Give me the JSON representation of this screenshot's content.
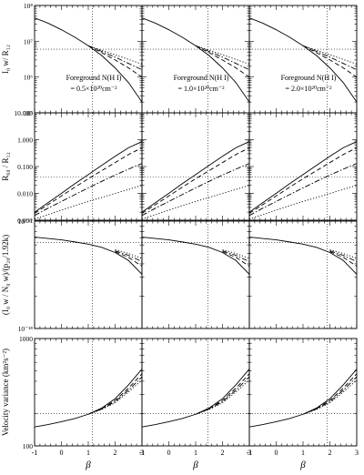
{
  "chart_data": {
    "type": "line",
    "x": {
      "label": "β",
      "lim": [
        -1,
        3
      ],
      "ticks": [
        "-1",
        "0",
        "1",
        "2",
        "3"
      ],
      "ref_lines": [
        1.15,
        1.45,
        1.9
      ]
    },
    "columns": [
      {
        "label_line1": "Foreground N(H I)",
        "label_line2": "=  0.5×10²⁰cm⁻²"
      },
      {
        "label_line1": "Foreground N(H I)",
        "label_line2": "=  1.0×10²⁰cm⁻²"
      },
      {
        "label_line1": "Foreground N(H I)",
        "label_line2": "=  2.0×10²⁰cm⁻²"
      }
    ],
    "rows": [
      {
        "ylabel": "I₀ w/ R₁₂",
        "scale": "log",
        "ylim": [
          100000,
          100000000
        ],
        "ticks": [
          {
            "v": 100000,
            "t": "10⁵"
          },
          {
            "v": 1000000,
            "t": "10⁶"
          },
          {
            "v": 10000000,
            "t": "10⁷"
          },
          {
            "v": 100000000,
            "t": "10⁸"
          }
        ],
        "ref_y": 6000000,
        "series": [
          {
            "style": "solid",
            "x": [
              -1,
              -0.5,
              0,
              0.5,
              1,
              1.5,
              2,
              2.5,
              3
            ],
            "y": [
              45000000,
              32000000,
              21000000,
              13000000,
              7500000,
              4000000,
              1800000,
              700000,
              200000
            ]
          },
          {
            "style": "dashed",
            "x": [
              1,
              1.5,
              2,
              2.5,
              3
            ],
            "y": [
              7500000,
              4800000,
              3000000,
              1800000,
              1000000
            ]
          },
          {
            "style": "dashdot",
            "x": [
              1,
              1.5,
              2,
              2.5,
              3
            ],
            "y": [
              7500000,
              5200000,
              3600000,
              2400000,
              1600000
            ]
          },
          {
            "style": "dotted",
            "x": [
              1,
              1.5,
              2,
              2.5,
              3
            ],
            "y": [
              7500000,
              5600000,
              4200000,
              3100000,
              2300000
            ]
          }
        ]
      },
      {
        "ylabel": "R₆₀ / R₁₂",
        "scale": "log",
        "ylim": [
          0.001,
          10
        ],
        "ticks": [
          {
            "v": 0.001,
            "t": "0.001"
          },
          {
            "v": 0.01,
            "t": "0.010"
          },
          {
            "v": 0.1,
            "t": "0.100"
          },
          {
            "v": 1,
            "t": "1.000"
          },
          {
            "v": 10,
            "t": "10.000"
          }
        ],
        "ref_y": 0.04,
        "series": [
          {
            "style": "solid",
            "x": [
              -1,
              -0.5,
              0,
              0.5,
              1,
              1.5,
              2,
              2.5,
              3
            ],
            "y": [
              0.002,
              0.0045,
              0.01,
              0.023,
              0.05,
              0.11,
              0.24,
              0.5,
              0.85
            ]
          },
          {
            "style": "dashed",
            "x": [
              -1,
              -0.5,
              0,
              0.5,
              1,
              1.5,
              2,
              2.5,
              3
            ],
            "y": [
              0.0018,
              0.0038,
              0.008,
              0.017,
              0.035,
              0.07,
              0.14,
              0.28,
              0.5
            ]
          },
          {
            "style": "dashdot",
            "x": [
              -1,
              -0.5,
              0,
              0.5,
              1,
              1.5,
              2,
              2.5,
              3
            ],
            "y": [
              0.0015,
              0.0028,
              0.005,
              0.009,
              0.016,
              0.028,
              0.048,
              0.08,
              0.13
            ]
          },
          {
            "style": "dotted",
            "x": [
              -1,
              -0.5,
              0,
              0.5,
              1,
              1.5,
              2,
              2.5,
              3
            ],
            "y": [
              0.0011,
              0.0016,
              0.0024,
              0.0035,
              0.005,
              0.007,
              0.01,
              0.014,
              0.02
            ]
          }
        ]
      },
      {
        "ylabel": "(I₀ w / N₀ w)/(p₂₀/1.92k)",
        "scale": "log",
        "ylim": [
          1e-18,
          1e-17
        ],
        "ticks": [
          {
            "v": 1e-18,
            "t": "10⁻¹⁸"
          },
          {
            "v": 1e-17,
            "t": "10⁻¹⁷"
          }
        ],
        "ref_y": 6.3e-18,
        "series": [
          {
            "style": "solid",
            "x": [
              -1,
              -0.5,
              0,
              0.5,
              1,
              1.5,
              2,
              2.5,
              3
            ],
            "y": [
              7.1e-18,
              6.9e-18,
              6.7e-18,
              6.4e-18,
              6.1e-18,
              5.7e-18,
              5.1e-18,
              4.3e-18,
              3.2e-18
            ]
          },
          {
            "style": "dashed",
            "x": [
              2,
              2.5,
              3
            ],
            "y": [
              5.2e-18,
              4.6e-18,
              3.8e-18
            ]
          },
          {
            "style": "dashdot",
            "x": [
              2,
              2.5,
              3
            ],
            "y": [
              5.3e-18,
              4.8e-18,
              4.2e-18
            ]
          },
          {
            "style": "dotted",
            "x": [
              2,
              2.5,
              3
            ],
            "y": [
              5.4e-18,
              5e-18,
              4.5e-18
            ]
          }
        ]
      },
      {
        "ylabel": "Velocity variance (km²s⁻²)",
        "scale": "log",
        "ylim": [
          100,
          1000
        ],
        "ticks": [
          {
            "v": 100,
            "t": "100"
          },
          {
            "v": 1000,
            "t": "1000"
          }
        ],
        "ref_y": 200,
        "series": [
          {
            "style": "solid",
            "x": [
              -1,
              -0.5,
              0,
              0.5,
              1,
              1.5,
              2,
              2.5,
              3
            ],
            "y": [
              150,
              158,
              168,
              180,
              197,
              225,
              275,
              370,
              520
            ]
          },
          {
            "style": "dashed",
            "x": [
              1,
              1.5,
              2,
              2.5,
              3
            ],
            "y": [
              197,
              222,
              265,
              345,
              470
            ]
          },
          {
            "style": "dashdot",
            "x": [
              1,
              1.5,
              2,
              2.5,
              3
            ],
            "y": [
              197,
              220,
              258,
              330,
              440
            ]
          },
          {
            "style": "dotted",
            "x": [
              1,
              1.5,
              2,
              2.5,
              3
            ],
            "y": [
              197,
              218,
              252,
              318,
              410
            ]
          }
        ]
      }
    ]
  }
}
